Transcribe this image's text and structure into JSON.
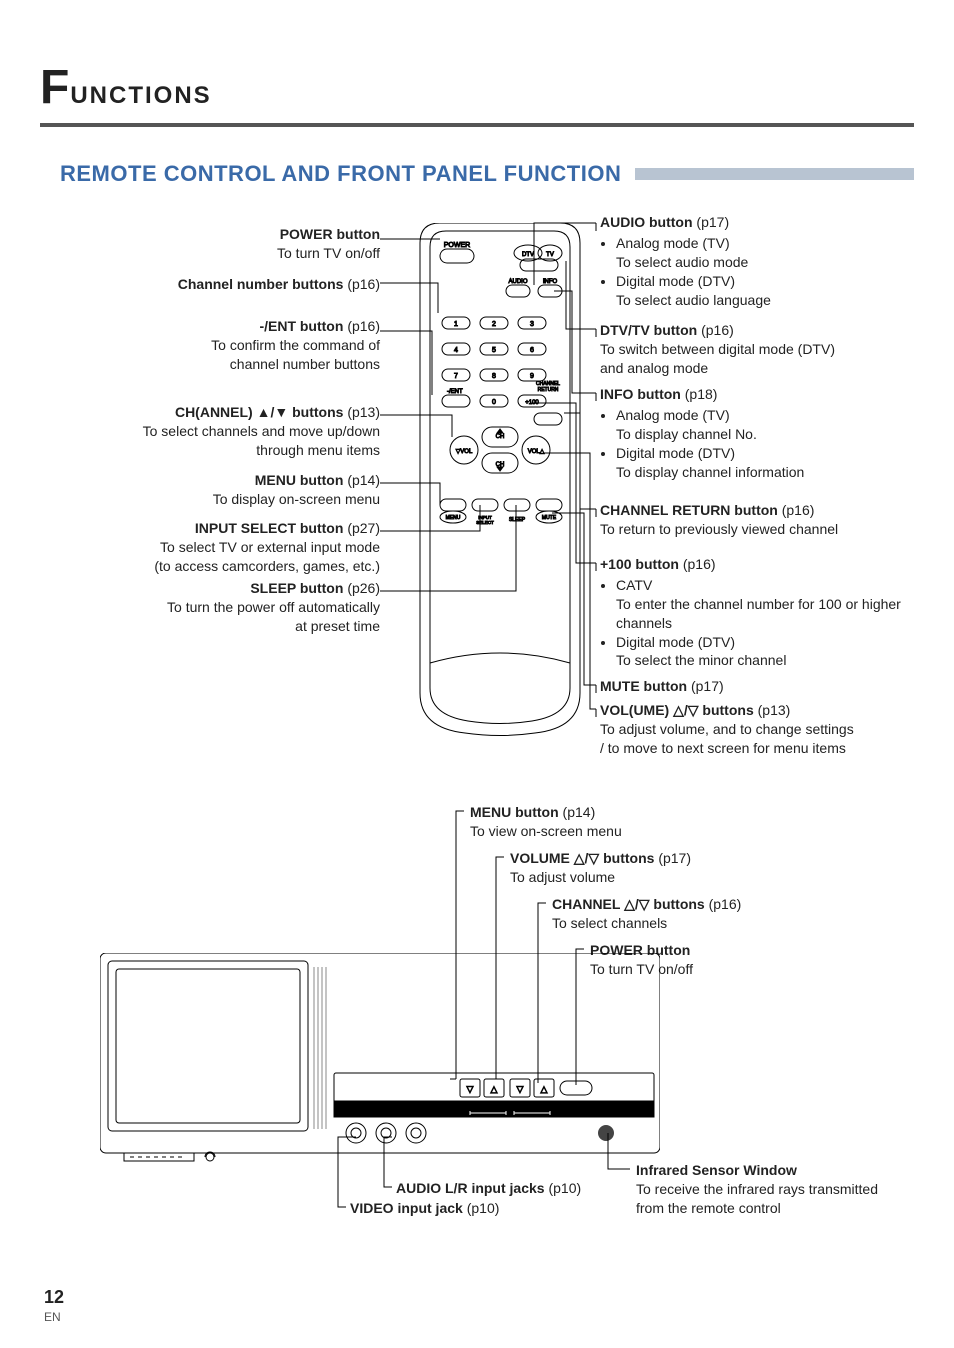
{
  "page": {
    "title_big": "F",
    "title_rest": "UNCTIONS",
    "section_heading": "REMOTE CONTROL AND FRONT PANEL FUNCTION",
    "page_number": "12",
    "page_suffix": "EN"
  },
  "colors": {
    "accent": "#3a6aa8",
    "bar": "#b8c4d2",
    "rule": "#555555",
    "stroke": "#000000"
  },
  "remote_labels": {
    "power": "POWER",
    "dtv": "DTV",
    "tv": "TV",
    "audio": "AUDIO",
    "info": "INFO",
    "ent": "-/ENT",
    "channel_return": "CHANNEL\nRETURN",
    "plus100": "+100",
    "ch": "CH",
    "vol_l": "VOL",
    "vol_r": "VOL",
    "menu": "MENU",
    "input_select": "INPUT\nSELECT",
    "sleep": "SLEEP",
    "mute": "MUTE",
    "digits": [
      "1",
      "2",
      "3",
      "4",
      "5",
      "6",
      "7",
      "8",
      "9",
      "0"
    ]
  },
  "left": [
    {
      "title": "POWER button",
      "page": "",
      "desc": [
        "To turn TV on/off"
      ]
    },
    {
      "title": "Channel number buttons",
      "page": "(p16)",
      "desc": []
    },
    {
      "title": "-/ENT button",
      "page": "(p16)",
      "desc": [
        "To confirm the command of",
        "channel number buttons"
      ]
    },
    {
      "title": "CH(ANNEL) ▲/▼ buttons",
      "page": "(p13)",
      "desc": [
        "To select channels and move up/down",
        "through menu items"
      ]
    },
    {
      "title": "MENU button",
      "page": "(p14)",
      "desc": [
        "To display on-screen menu"
      ]
    },
    {
      "title": "INPUT SELECT button",
      "page": "(p27)",
      "desc": [
        "To select TV or external input mode",
        "(to access camcorders, games, etc.)"
      ]
    },
    {
      "title": "SLEEP button",
      "page": "(p26)",
      "desc": [
        "To turn the power off automatically",
        "at preset time"
      ]
    }
  ],
  "right": [
    {
      "title": "AUDIO button",
      "page": "(p17)",
      "bullets": [
        {
          "lead": "Analog mode (TV)",
          "sub": "To select audio mode"
        },
        {
          "lead": "Digital mode (DTV)",
          "sub": "To select audio language"
        }
      ]
    },
    {
      "title": "DTV/TV button",
      "page": "(p16)",
      "desc": [
        "To switch between digital mode (DTV)",
        "and analog mode"
      ]
    },
    {
      "title": "INFO button",
      "page": "(p18)",
      "bullets": [
        {
          "lead": "Analog mode (TV)",
          "sub": "To display channel No."
        },
        {
          "lead": "Digital mode (DTV)",
          "sub": "To display channel information"
        }
      ]
    },
    {
      "title": "CHANNEL RETURN button",
      "page": "(p16)",
      "desc": [
        "To return to previously viewed channel"
      ]
    },
    {
      "title": "+100 button",
      "page": "(p16)",
      "bullets": [
        {
          "lead": "CATV",
          "sub": "To enter the channel number for 100 or higher channels"
        },
        {
          "lead": "Digital mode (DTV)",
          "sub": "To select the minor channel"
        }
      ]
    },
    {
      "title": "MUTE button",
      "page": "(p17)",
      "desc": []
    },
    {
      "title": "VOL(UME) △/▽ buttons",
      "page": "(p13)",
      "desc": [
        "To adjust volume, and to change settings",
        "/ to move to next screen for menu items"
      ]
    }
  ],
  "bottom_callouts": {
    "menu": {
      "title": "MENU button",
      "page": "(p14)",
      "desc": "To view on-screen menu"
    },
    "volume": {
      "title": "VOLUME △/▽ buttons",
      "page": "(p17)",
      "desc": "To adjust volume"
    },
    "channel": {
      "title": "CHANNEL △/▽ buttons",
      "page": "(p16)",
      "desc": "To select channels"
    },
    "power": {
      "title": "POWER button",
      "page": "",
      "desc": "To turn TV on/off"
    },
    "audio_jacks": {
      "title": "AUDIO L/R input jacks",
      "page": "(p10)",
      "desc": ""
    },
    "video_jack": {
      "title": "VIDEO input jack",
      "page": "(p10)",
      "desc": ""
    },
    "ir": {
      "title": "Infrared Sensor Window",
      "page": "",
      "desc": "To receive the infrared rays transmitted from the remote control"
    }
  },
  "tv_labels": {
    "video": "VIDEO",
    "audio_l": "L",
    "audio": "AUDIO",
    "audio_r": "R",
    "menu": "MENU",
    "volume": "VOLUME",
    "channel": "CHANNEL",
    "power": "POWER"
  }
}
